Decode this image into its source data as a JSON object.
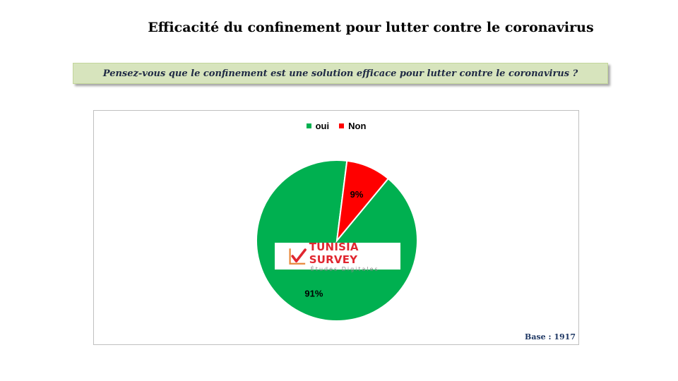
{
  "header": {
    "title": "Efficacité du confinement pour lutter contre le coronavirus",
    "question": "Pensez-vous que le confinement est une solution efficace pour lutter contre le coronavirus ?"
  },
  "chart_data": {
    "type": "pie",
    "categories": [
      "oui",
      "Non"
    ],
    "values": [
      91,
      9
    ],
    "data_labels": [
      "91%",
      "9%"
    ],
    "colors": [
      "#00b050",
      "#ff0000"
    ],
    "legend_position": "top"
  },
  "logo": {
    "name": "TUNISIA SURVEY",
    "tagline": "Études Digitales"
  },
  "footer": {
    "base_label": "Base :",
    "base_value": "1917"
  }
}
